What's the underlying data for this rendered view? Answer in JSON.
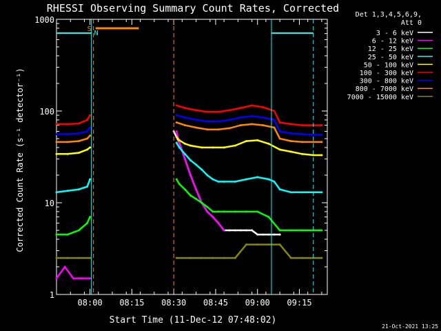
{
  "chart_data": {
    "type": "line",
    "title": "RHESSI Observing Summary Count Rates, Corrected",
    "xlabel": "Start Time (11-Dec-12 07:48:02)",
    "ylabel": "Corrected Count Rate (s⁻¹ detector⁻¹)",
    "yscale": "log",
    "ylim": [
      1,
      1000
    ],
    "xlim_minutes_after_start": [
      0,
      97
    ],
    "x_ticks": [
      {
        "label": "08:00",
        "minutes": 12
      },
      {
        "label": "08:15",
        "minutes": 27
      },
      {
        "label": "08:30",
        "minutes": 42
      },
      {
        "label": "08:45",
        "minutes": 57
      },
      {
        "label": "09:00",
        "minutes": 72
      },
      {
        "label": "09:15",
        "minutes": 87
      }
    ],
    "y_ticks": [
      {
        "label": "1",
        "value": 1
      },
      {
        "label": "10",
        "value": 10
      },
      {
        "label": "100",
        "value": 100
      },
      {
        "label": "1000",
        "value": 1000
      }
    ],
    "legend": {
      "placement": "outside-right",
      "header": [
        "Det 1,3,4,5,6,9,",
        "Att 0"
      ]
    },
    "data_gaps_minutes": [
      [
        13,
        27
      ],
      [
        28,
        42
      ]
    ],
    "series": [
      {
        "name": "3 - 6 keV",
        "color": "#ffffff",
        "x": [
          42,
          44,
          46,
          48,
          50,
          52,
          54,
          56,
          58,
          60,
          62,
          64,
          66,
          68,
          70,
          72,
          74,
          76,
          78,
          80
        ],
        "y": [
          60,
          45,
          30,
          20,
          14,
          10,
          8,
          7,
          6,
          5,
          5,
          5,
          5,
          5,
          5,
          4.5,
          4.5,
          4.5,
          4.5,
          4.5
        ]
      },
      {
        "name": "6 - 12 keV",
        "color": "#ff00ff",
        "x": [
          0,
          3,
          6,
          9,
          12,
          43,
          44,
          46,
          48,
          50,
          52,
          54,
          56,
          58,
          60
        ],
        "y": [
          1.5,
          2,
          1.5,
          1.5,
          1.5,
          60,
          45,
          30,
          20,
          14,
          10,
          8,
          7,
          6,
          5
        ]
      },
      {
        "name": "12 - 25 keV",
        "color": "#00ff00",
        "x": [
          0,
          4,
          8,
          11,
          12,
          43,
          44,
          46,
          48,
          50,
          52,
          54,
          56,
          58,
          60,
          64,
          68,
          72,
          76,
          80,
          84,
          88,
          92,
          95
        ],
        "y": [
          4.5,
          4.5,
          5,
          6,
          7,
          18,
          16,
          14,
          12,
          11,
          10,
          9,
          8,
          8,
          8,
          8,
          8,
          8,
          7,
          5,
          5,
          5,
          5,
          5
        ]
      },
      {
        "name": "25 - 50 keV",
        "color": "#00ffff",
        "x": [
          0,
          4,
          8,
          11,
          12,
          43,
          44,
          46,
          48,
          50,
          52,
          54,
          56,
          58,
          60,
          64,
          68,
          72,
          76,
          78,
          80,
          84,
          88,
          92,
          95
        ],
        "y": [
          13,
          13.5,
          14,
          15,
          18,
          45,
          40,
          34,
          29,
          26,
          23,
          20,
          18,
          17,
          17,
          17,
          18,
          19,
          18,
          17,
          14,
          13,
          13,
          13,
          13
        ]
      },
      {
        "name": "50 - 100 keV",
        "color": "#ffff00",
        "x": [
          0,
          4,
          8,
          11,
          12,
          43,
          44,
          46,
          48,
          52,
          56,
          60,
          64,
          68,
          72,
          76,
          80,
          84,
          88,
          92,
          95
        ],
        "y": [
          34,
          34,
          35,
          38,
          40,
          52,
          48,
          44,
          42,
          40,
          40,
          40,
          42,
          47,
          48,
          44,
          38,
          36,
          34,
          33,
          33
        ]
      },
      {
        "name": "100 - 300 keV",
        "color": "#ff0000",
        "x": [
          0,
          4,
          8,
          11,
          12,
          43,
          46,
          50,
          54,
          58,
          62,
          66,
          70,
          74,
          78,
          80,
          84,
          88,
          92,
          95
        ],
        "y": [
          72,
          72,
          73,
          80,
          90,
          115,
          108,
          102,
          98,
          98,
          102,
          108,
          115,
          110,
          100,
          75,
          72,
          70,
          70,
          70
        ]
      },
      {
        "name": "300 - 800 keV",
        "color": "#0000ff",
        "x": [
          0,
          4,
          8,
          11,
          12,
          43,
          46,
          50,
          54,
          58,
          62,
          66,
          70,
          74,
          78,
          80,
          84,
          88,
          92,
          95
        ],
        "y": [
          56,
          56,
          57,
          60,
          66,
          90,
          85,
          80,
          77,
          77,
          80,
          85,
          88,
          85,
          80,
          60,
          57,
          56,
          55,
          55
        ]
      },
      {
        "name": "800 - 7000 keV",
        "color": "#ff8800",
        "x": [
          0,
          4,
          8,
          11,
          12,
          43,
          46,
          50,
          54,
          58,
          62,
          66,
          70,
          74,
          78,
          80,
          84,
          88,
          92,
          95
        ],
        "y": [
          46,
          46,
          47,
          50,
          54,
          75,
          70,
          66,
          63,
          63,
          65,
          70,
          72,
          70,
          66,
          50,
          47,
          46,
          46,
          46
        ]
      },
      {
        "name": "7000 - 15000 keV",
        "color": "#888800",
        "x": [
          0,
          4,
          8,
          12,
          43,
          48,
          52,
          56,
          60,
          64,
          68,
          72,
          76,
          80,
          84,
          88,
          92,
          95
        ],
        "y": [
          2.5,
          2.5,
          2.5,
          2.5,
          2.5,
          2.5,
          2.5,
          2.5,
          2.5,
          2.5,
          3.5,
          3.5,
          3.5,
          3.5,
          2.5,
          2.5,
          2.5,
          2.5
        ]
      }
    ],
    "annotations": [
      {
        "text": "S",
        "color": "#ff8800",
        "minutes": 13,
        "type": "flag"
      },
      {
        "text": "N",
        "color": "#00ffff",
        "minutes": 13,
        "type": "flag"
      }
    ],
    "timestamp": "21-Oct-2021 13:25"
  }
}
